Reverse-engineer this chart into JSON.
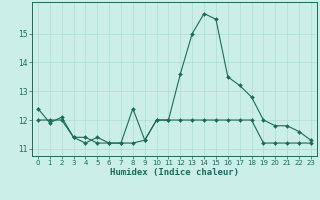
{
  "xlabel": "Humidex (Indice chaleur)",
  "ylabel": "",
  "background_color": "#cceee8",
  "line_color": "#1a6b5a",
  "grid_color": "#aaddcc",
  "x_values": [
    0,
    1,
    2,
    3,
    4,
    5,
    6,
    7,
    8,
    9,
    10,
    11,
    12,
    13,
    14,
    15,
    16,
    17,
    18,
    19,
    20,
    21,
    22,
    23
  ],
  "line1": [
    12.4,
    11.9,
    12.1,
    11.4,
    11.2,
    11.4,
    11.2,
    11.2,
    12.4,
    11.3,
    12.0,
    12.0,
    13.6,
    15.0,
    15.7,
    15.5,
    13.5,
    13.2,
    12.8,
    12.0,
    11.8,
    11.8,
    11.6,
    11.3
  ],
  "line2": [
    12.0,
    12.0,
    12.0,
    11.4,
    11.4,
    11.2,
    11.2,
    11.2,
    11.2,
    11.3,
    12.0,
    12.0,
    12.0,
    12.0,
    12.0,
    12.0,
    12.0,
    12.0,
    12.0,
    11.2,
    11.2,
    11.2,
    11.2,
    11.2
  ],
  "ylim": [
    10.75,
    16.1
  ],
  "xlim": [
    -0.5,
    23.5
  ],
  "yticks": [
    11,
    12,
    13,
    14,
    15
  ],
  "xticks": [
    0,
    1,
    2,
    3,
    4,
    5,
    6,
    7,
    8,
    9,
    10,
    11,
    12,
    13,
    14,
    15,
    16,
    17,
    18,
    19,
    20,
    21,
    22,
    23
  ],
  "marker": "D",
  "marker_size": 2.0,
  "line_width": 0.8,
  "tick_fontsize": 5.0,
  "xlabel_fontsize": 6.5
}
